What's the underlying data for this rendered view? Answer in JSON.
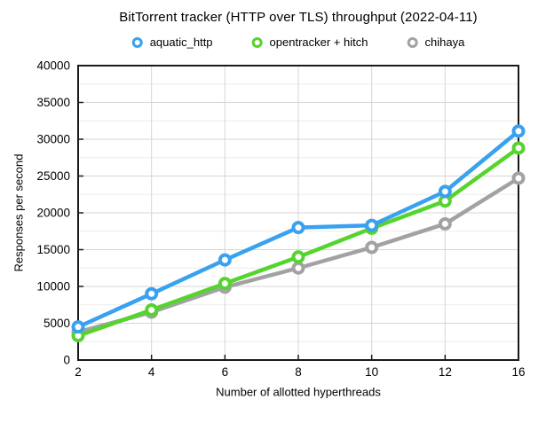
{
  "chart_data": {
    "type": "line",
    "title": "BitTorrent tracker (HTTP over TLS) throughput (2022-04-11)",
    "xlabel": "Number of allotted hyperthreads",
    "ylabel": "Responses per second",
    "categories": [
      "2",
      "4",
      "6",
      "8",
      "10",
      "12",
      "16"
    ],
    "ylim": [
      0,
      40000
    ],
    "y_major_step": 5000,
    "y_minor_step": 2500,
    "grid": true,
    "legend_position": "top",
    "series": [
      {
        "name": "aquatic_http",
        "color": "#38A1F0",
        "values": [
          4500,
          9000,
          13600,
          18000,
          18300,
          22900,
          31100
        ]
      },
      {
        "name": "opentracker + hitch",
        "color": "#55D42D",
        "values": [
          3300,
          6800,
          10400,
          14000,
          17900,
          21600,
          28800
        ]
      },
      {
        "name": "chihaya",
        "color": "#A2A2A2",
        "values": [
          3800,
          6500,
          9900,
          12500,
          15300,
          18500,
          24700
        ]
      }
    ]
  },
  "colors": {
    "background": "#FFFFFF",
    "axis": "#1A1A1A",
    "grid_major": "#D6D6D6",
    "grid_minor": "#EBEBEB",
    "text": "#000000",
    "marker_fill": "#FFFFFF"
  }
}
